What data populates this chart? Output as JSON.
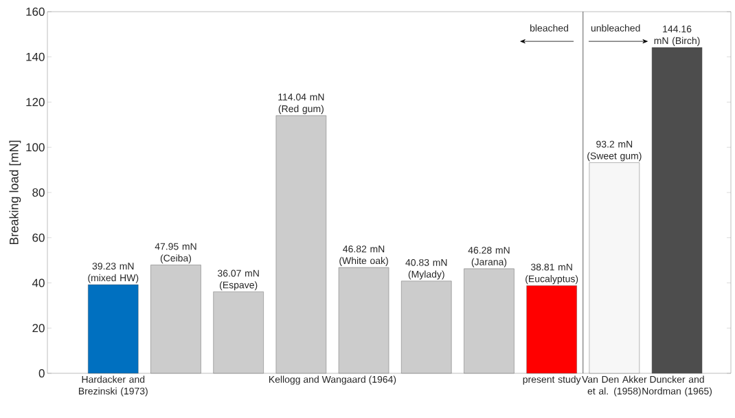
{
  "chart_data": {
    "type": "bar",
    "ylabel": "Breaking load [mN]",
    "categories": [
      "Hardacker and Brezinski (1973)",
      null,
      null,
      null,
      null,
      null,
      null,
      "present study",
      "Van Den Akker et al. (1958)",
      "Duncker and Nordman (1965)"
    ],
    "values": [
      39.23,
      47.95,
      36.07,
      114.04,
      46.82,
      40.83,
      46.28,
      38.81,
      93.2,
      144.16
    ],
    "colors": [
      "#0070c0",
      "#cccccc",
      "#cccccc",
      "#cccccc",
      "#cccccc",
      "#cccccc",
      "#cccccc",
      "#ff0000",
      "#f7f7f7",
      "#4d4d4d"
    ],
    "value_labels": [
      "39.23 mN (mixed HW)",
      "47.95 mN (Ceiba)",
      "36.07 mN (Espave)",
      "114.04 mN (Red gum)",
      "46.82 mN (White oak)",
      "40.83 mN (Mylady)",
      "46.28 mN (Jarana)",
      "38.81 mN (Eucalyptus)",
      "93.2 mN (Sweet gum)",
      "144.16 mN (Birch)"
    ],
    "ylim": [
      0,
      160
    ],
    "yticks": [
      0,
      20,
      40,
      60,
      80,
      100,
      120,
      140,
      160
    ],
    "annotations": [
      "bleached",
      "unbleached",
      "Kellogg and Wangaard (1964)"
    ]
  }
}
